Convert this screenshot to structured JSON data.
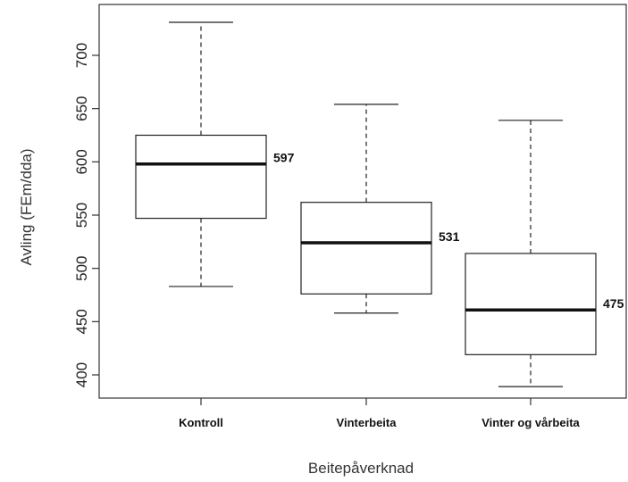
{
  "chart_data": {
    "type": "boxplot",
    "title": "",
    "xlabel": "Beitepåverknad",
    "ylabel": "Avling (FEm/dda)",
    "ylim": [
      375,
      740
    ],
    "yticks": [
      400,
      450,
      500,
      550,
      600,
      650,
      700
    ],
    "grid": false,
    "categories": [
      "Kontroll",
      "Vinterbeita",
      "Vinter og vårbeita"
    ],
    "boxes": [
      {
        "category": "Kontroll",
        "min": 483,
        "q1": 547,
        "median": 598,
        "q3": 625,
        "max": 731,
        "label": "597"
      },
      {
        "category": "Vinterbeita",
        "min": 458,
        "q1": 476,
        "median": 524,
        "q3": 562,
        "max": 654,
        "label": "531"
      },
      {
        "category": "Vinter og vårbeita",
        "min": 389,
        "q1": 419,
        "median": 461,
        "q3": 514,
        "max": 639,
        "label": "475"
      }
    ]
  }
}
